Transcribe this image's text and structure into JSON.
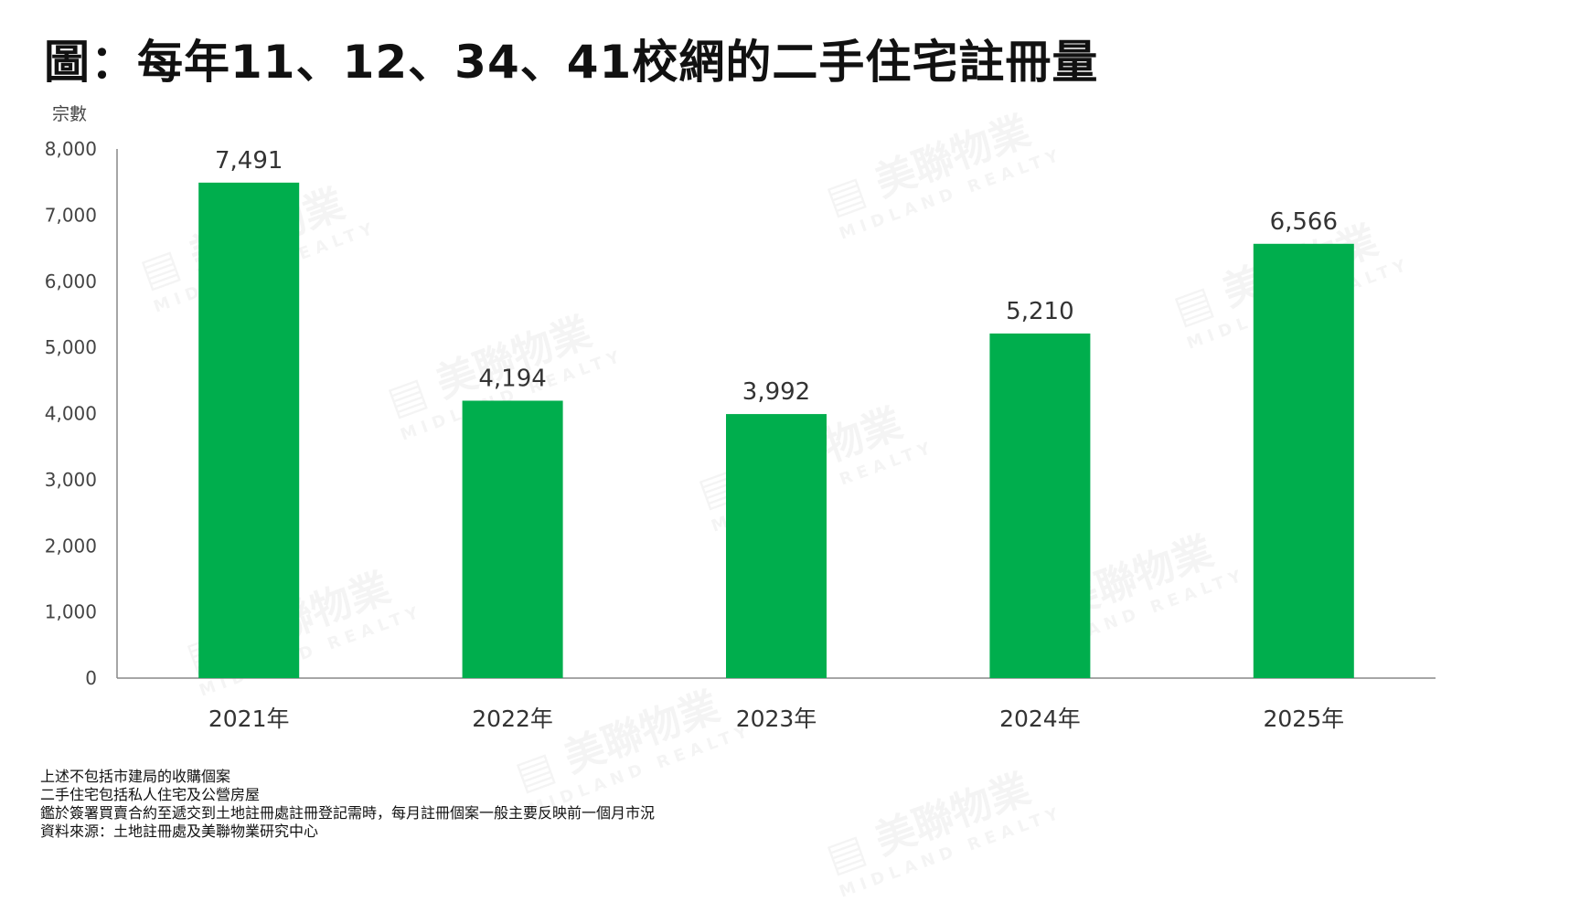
{
  "watermark": {
    "text": "美聯物業",
    "subtext": "MIDLAND REALTY"
  },
  "chart_data": {
    "type": "bar",
    "title": "圖：每年11、12、34、41校網的二手住宅註冊量",
    "ylabel": "宗數",
    "xlabel": "",
    "categories": [
      "2021年",
      "2022年",
      "2023年",
      "2024年",
      "2025年"
    ],
    "values": [
      7491,
      4194,
      3992,
      5210,
      6566
    ],
    "data_labels": [
      "7,491",
      "4,194",
      "3,992",
      "5,210",
      "6,566"
    ],
    "ylim": [
      0,
      8000
    ],
    "yticks": [
      0,
      1000,
      2000,
      3000,
      4000,
      5000,
      6000,
      7000,
      8000
    ],
    "ytick_labels": [
      "0",
      "1,000",
      "2,000",
      "3,000",
      "4,000",
      "5,000",
      "6,000",
      "7,000",
      "8,000"
    ],
    "grid": false,
    "bar_color": "#00AE4D"
  },
  "notes": [
    "上述不包括市建局的收購個案",
    "二手住宅包括私人住宅及公營房屋",
    "鑑於簽署買賣合約至遞交到土地註冊處註冊登記需時，每月註冊個案一般主要反映前一個月市況",
    "資料來源：土地註冊處及美聯物業研究中心"
  ]
}
